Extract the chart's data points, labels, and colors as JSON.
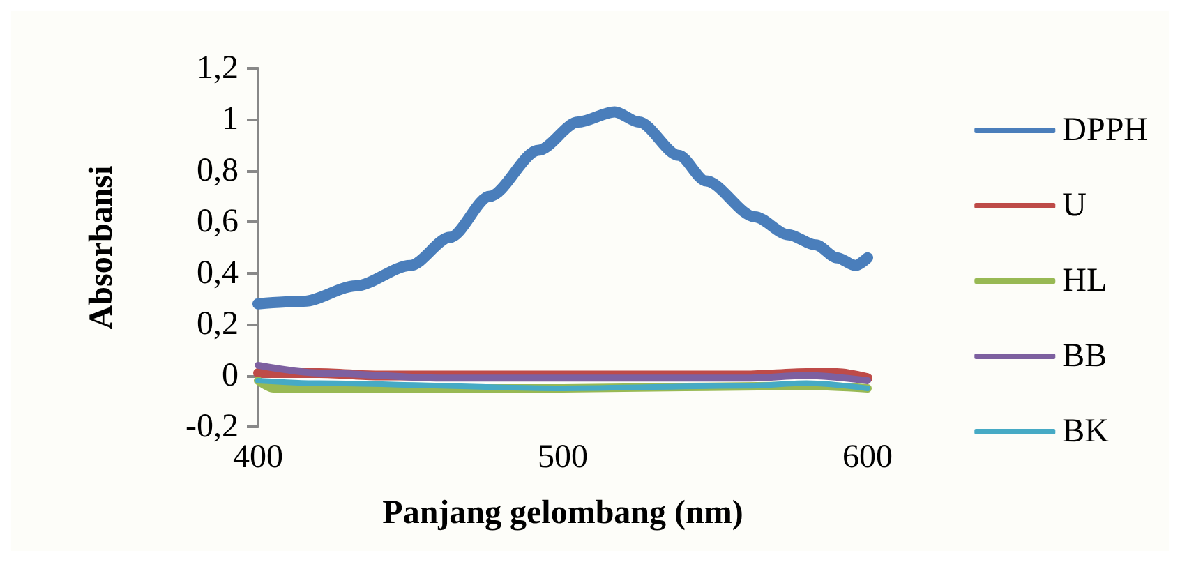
{
  "chart_data": {
    "type": "line",
    "xlabel": "Panjang gelombang (nm)",
    "ylabel": "Absorbansi",
    "xlim": [
      400,
      600
    ],
    "xticks": [
      400,
      500,
      600
    ],
    "ylim": [
      -0.2,
      1.2
    ],
    "yticks": [
      {
        "value": -0.2,
        "label": "-0,2"
      },
      0,
      {
        "value": 0.2,
        "label": "0,2"
      },
      {
        "value": 0.4,
        "label": "0,4"
      },
      {
        "value": 0.6,
        "label": "0,6"
      },
      {
        "value": 0.8,
        "label": "0,8"
      },
      1,
      {
        "value": 1.2,
        "label": "1,2"
      }
    ],
    "grid": false,
    "legend": "right",
    "marker": "none",
    "line_style": "solid",
    "series": [
      {
        "name": "DPPH",
        "color": "#4a7ebb",
        "x": [
          400,
          415,
          432,
          450,
          463,
          476,
          492,
          505,
          517,
          525,
          538,
          547,
          563,
          574,
          583,
          590,
          596,
          600
        ],
        "values": [
          0.28,
          0.29,
          0.35,
          0.43,
          0.54,
          0.7,
          0.88,
          0.99,
          1.03,
          0.99,
          0.86,
          0.76,
          0.62,
          0.55,
          0.51,
          0.46,
          0.43,
          0.46
        ]
      },
      {
        "name": "U",
        "color": "#be4b48",
        "x": [
          400,
          420,
          440,
          500,
          560,
          580,
          590,
          600
        ],
        "values": [
          0.01,
          0.01,
          0.0,
          0.0,
          0.0,
          0.01,
          0.01,
          -0.01
        ]
      },
      {
        "name": "HL",
        "color": "#98b954",
        "x": [
          400,
          405,
          420,
          500,
          580,
          600
        ],
        "values": [
          -0.02,
          -0.05,
          -0.05,
          -0.05,
          -0.04,
          -0.05
        ]
      },
      {
        "name": "BB",
        "color": "#7d60a0",
        "x": [
          400,
          420,
          460,
          500,
          560,
          580,
          600
        ],
        "values": [
          0.04,
          0.01,
          -0.01,
          -0.01,
          -0.01,
          0.0,
          -0.02
        ]
      },
      {
        "name": "BK",
        "color": "#46aac5",
        "x": [
          400,
          420,
          500,
          560,
          580,
          600
        ],
        "values": [
          -0.02,
          -0.03,
          -0.05,
          -0.04,
          -0.03,
          -0.05
        ]
      }
    ]
  }
}
